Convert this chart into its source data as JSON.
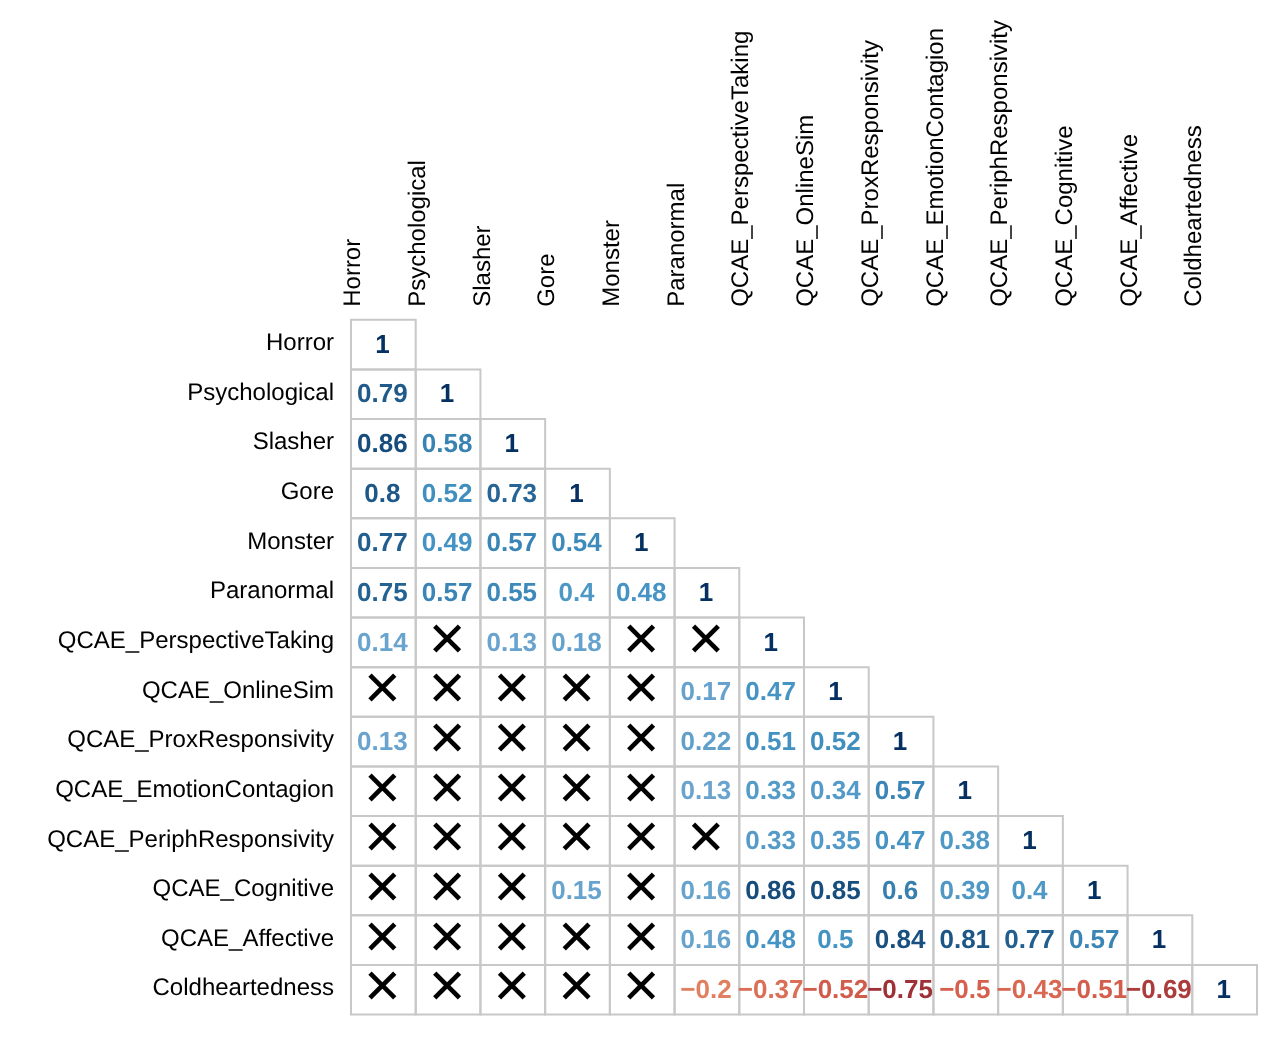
{
  "chart_data": {
    "type": "heatmap",
    "categories": [
      "Horror",
      "Psychological",
      "Slasher",
      "Gore",
      "Monster",
      "Paranormal",
      "QCAE_PerspectiveTaking",
      "QCAE_OnlineSim",
      "QCAE_ProxResponsivity",
      "QCAE_EmotionContagion",
      "QCAE_PeriphResponsivity",
      "QCAE_Cognitive",
      "QCAE_Affective",
      "Coldheartedness"
    ],
    "y_categories": [
      "Horror",
      "Psychological",
      "Slasher",
      "Gore",
      "Monster",
      "Paranormal",
      "QCAE_PerspectiveTaking",
      "QCAE_OnlineSim",
      "QCAE_ProxResponsivity",
      "QCAE_EmotionContagion",
      "QCAE_PeriphResponsivity",
      "QCAE_Cognitive",
      "QCAE_Affective",
      "Coldheartedness"
    ],
    "cells": [
      [
        1,
        null,
        null,
        null,
        null,
        null,
        null,
        null,
        null,
        null,
        null,
        null,
        null,
        null
      ],
      [
        0.79,
        1,
        null,
        null,
        null,
        null,
        null,
        null,
        null,
        null,
        null,
        null,
        null,
        null
      ],
      [
        0.86,
        0.58,
        1,
        null,
        null,
        null,
        null,
        null,
        null,
        null,
        null,
        null,
        null,
        null
      ],
      [
        0.8,
        0.52,
        0.73,
        1,
        null,
        null,
        null,
        null,
        null,
        null,
        null,
        null,
        null,
        null
      ],
      [
        0.77,
        0.49,
        0.57,
        0.54,
        1,
        null,
        null,
        null,
        null,
        null,
        null,
        null,
        null,
        null
      ],
      [
        0.75,
        0.57,
        0.55,
        0.4,
        0.48,
        1,
        null,
        null,
        null,
        null,
        null,
        null,
        null,
        null
      ],
      [
        0.14,
        null,
        0.13,
        0.18,
        null,
        null,
        1,
        null,
        null,
        null,
        null,
        null,
        null,
        null
      ],
      [
        null,
        null,
        null,
        null,
        null,
        0.17,
        0.47,
        1,
        null,
        null,
        null,
        null,
        null,
        null
      ],
      [
        0.13,
        null,
        null,
        null,
        null,
        0.22,
        0.51,
        0.52,
        1,
        null,
        null,
        null,
        null,
        null
      ],
      [
        null,
        null,
        null,
        null,
        null,
        0.13,
        0.33,
        0.34,
        0.57,
        1,
        null,
        null,
        null,
        null
      ],
      [
        null,
        null,
        null,
        null,
        null,
        null,
        0.33,
        0.35,
        0.47,
        0.38,
        1,
        null,
        null,
        null
      ],
      [
        null,
        null,
        null,
        0.15,
        null,
        0.16,
        0.86,
        0.85,
        0.6,
        0.39,
        0.4,
        1,
        null,
        null
      ],
      [
        null,
        null,
        null,
        null,
        null,
        0.16,
        0.48,
        0.5,
        0.84,
        0.81,
        0.77,
        0.57,
        1,
        null
      ],
      [
        null,
        null,
        null,
        null,
        null,
        -0.2,
        -0.37,
        -0.52,
        -0.75,
        -0.5,
        -0.43,
        -0.51,
        -0.69,
        1
      ]
    ],
    "cell_labels": [
      [
        "1",
        null,
        null,
        null,
        null,
        null,
        null,
        null,
        null,
        null,
        null,
        null,
        null,
        null
      ],
      [
        "0.79",
        "1",
        null,
        null,
        null,
        null,
        null,
        null,
        null,
        null,
        null,
        null,
        null,
        null
      ],
      [
        "0.86",
        "0.58",
        "1",
        null,
        null,
        null,
        null,
        null,
        null,
        null,
        null,
        null,
        null,
        null
      ],
      [
        "0.8",
        "0.52",
        "0.73",
        "1",
        null,
        null,
        null,
        null,
        null,
        null,
        null,
        null,
        null,
        null
      ],
      [
        "0.77",
        "0.49",
        "0.57",
        "0.54",
        "1",
        null,
        null,
        null,
        null,
        null,
        null,
        null,
        null,
        null
      ],
      [
        "0.75",
        "0.57",
        "0.55",
        "0.4",
        "0.48",
        "1",
        null,
        null,
        null,
        null,
        null,
        null,
        null,
        null
      ],
      [
        "0.14",
        "✕",
        "0.13",
        "0.18",
        "✕",
        "✕",
        "1",
        null,
        null,
        null,
        null,
        null,
        null,
        null
      ],
      [
        "✕",
        "✕",
        "✕",
        "✕",
        "✕",
        "0.17",
        "0.47",
        "1",
        null,
        null,
        null,
        null,
        null,
        null
      ],
      [
        "0.13",
        "✕",
        "✕",
        "✕",
        "✕",
        "0.22",
        "0.51",
        "0.52",
        "1",
        null,
        null,
        null,
        null,
        null
      ],
      [
        "✕",
        "✕",
        "✕",
        "✕",
        "✕",
        "0.13",
        "0.33",
        "0.34",
        "0.57",
        "1",
        null,
        null,
        null,
        null
      ],
      [
        "✕",
        "✕",
        "✕",
        "✕",
        "✕",
        "✕",
        "0.33",
        "0.35",
        "0.47",
        "0.38",
        "1",
        null,
        null,
        null
      ],
      [
        "✕",
        "✕",
        "✕",
        "0.15",
        "✕",
        "0.16",
        "0.86",
        "0.85",
        "0.6",
        "0.39",
        "0.4",
        "1",
        null,
        null
      ],
      [
        "✕",
        "✕",
        "✕",
        "✕",
        "✕",
        "0.16",
        "0.48",
        "0.5",
        "0.84",
        "0.81",
        "0.77",
        "0.57",
        "1",
        null
      ],
      [
        "✕",
        "✕",
        "✕",
        "✕",
        "✕",
        "−0.2",
        "−0.37",
        "−0.52",
        "−0.75",
        "−0.5",
        "−0.43",
        "−0.51",
        "−0.69",
        "1"
      ]
    ]
  }
}
